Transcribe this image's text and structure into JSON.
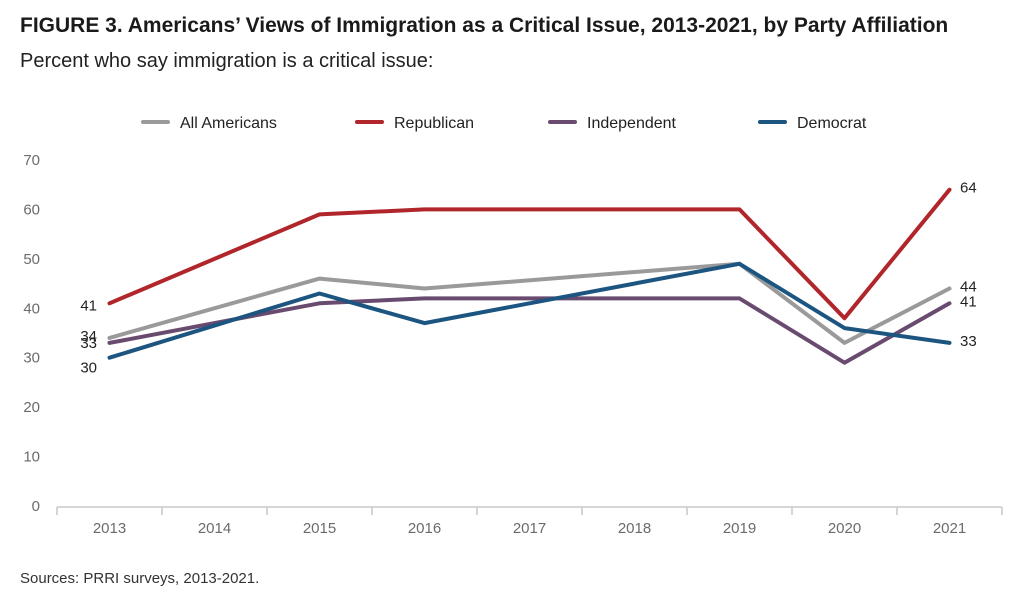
{
  "title": "FIGURE 3. Americans’ Views of Immigration as a Critical Issue, 2013-2021, by Party Affiliation",
  "subtitle": "Percent who say immigration is a critical issue:",
  "source": "Sources: PRRI surveys, 2013-2021.",
  "chart_data": {
    "type": "line",
    "x": [
      "2013",
      "2014",
      "2015",
      "2016",
      "2017",
      "2018",
      "2019",
      "2020",
      "2021"
    ],
    "ylim": [
      0,
      70
    ],
    "yticks": [
      "0",
      "10",
      "20",
      "30",
      "40",
      "50",
      "60",
      "70"
    ],
    "grid": false,
    "legend": "top",
    "series": [
      {
        "name": "All Americans",
        "color": "#9a9a9a",
        "values": [
          34,
          null,
          46,
          44,
          null,
          null,
          49,
          33,
          44
        ]
      },
      {
        "name": "Republican",
        "color": "#b0262b",
        "values": [
          41,
          null,
          59,
          60,
          null,
          null,
          60,
          38,
          64
        ]
      },
      {
        "name": "Independent",
        "color": "#6a4b70",
        "values": [
          33,
          null,
          41,
          42,
          null,
          null,
          42,
          29,
          41
        ]
      },
      {
        "name": "Democrat",
        "color": "#1c5580",
        "values": [
          30,
          null,
          43,
          37,
          null,
          null,
          49,
          36,
          33
        ]
      }
    ],
    "start_labels": [
      "41",
      "34",
      "33",
      "30"
    ],
    "end_labels": [
      "64",
      "44",
      "41",
      "33"
    ]
  }
}
